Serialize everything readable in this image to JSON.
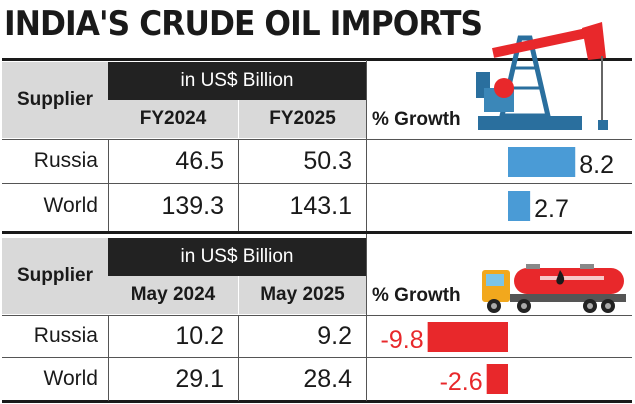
{
  "title": "INDIA'S CRUDE OIL IMPORTS",
  "tables": [
    {
      "supplier_label": "Supplier",
      "unit_label": "in US$ Billion",
      "col1": "FY2024",
      "col2": "FY2025",
      "growth_label": "% Growth",
      "rows": [
        {
          "name": "Russia",
          "v1": "46.5",
          "v2": "50.3",
          "growth": "8.2"
        },
        {
          "name": "World",
          "v1": "139.3",
          "v2": "143.1",
          "growth": "2.7"
        }
      ]
    },
    {
      "supplier_label": "Supplier",
      "unit_label": "in US$ Billion",
      "col1": "May 2024",
      "col2": "May 2025",
      "growth_label": "% Growth",
      "rows": [
        {
          "name": "Russia",
          "v1": "10.2",
          "v2": "9.2",
          "growth": "-9.8"
        },
        {
          "name": "World",
          "v1": "29.1",
          "v2": "28.4",
          "growth": "-2.6"
        }
      ]
    }
  ],
  "chart_data": [
    {
      "type": "bar",
      "title": "INDIA'S CRUDE OIL IMPORTS",
      "categories": [
        "Russia",
        "World"
      ],
      "series": [
        {
          "name": "% Growth",
          "values": [
            8.2,
            2.7
          ]
        }
      ],
      "column_headers": [
        "FY2024",
        "FY2025"
      ],
      "table_values": {
        "Russia": [
          46.5,
          50.3
        ],
        "World": [
          139.3,
          143.1
        ]
      },
      "color": "#4a9bd6"
    },
    {
      "type": "bar",
      "categories": [
        "Russia",
        "World"
      ],
      "series": [
        {
          "name": "% Growth",
          "values": [
            -9.8,
            -2.6
          ]
        }
      ],
      "column_headers": [
        "May 2024",
        "May 2025"
      ],
      "table_values": {
        "Russia": [
          10.2,
          9.2
        ],
        "World": [
          29.1,
          28.4
        ]
      },
      "color": "#e8282b"
    }
  ],
  "icons": [
    "oil-pump-icon",
    "oil-tanker-truck-icon"
  ],
  "colors": {
    "positive_bar": "#4a9bd6",
    "negative_bar": "#e8282b",
    "header_dark": "#222222",
    "header_gray": "#d9d9d9",
    "negative_text": "#e8282b"
  }
}
